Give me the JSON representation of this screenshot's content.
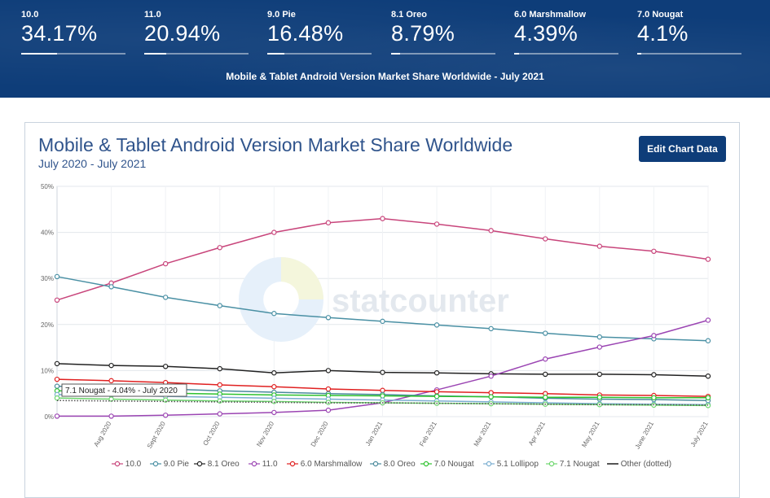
{
  "stats": [
    {
      "label": "10.0",
      "value": "34.17%",
      "share": 0.3417
    },
    {
      "label": "11.0",
      "value": "20.94%",
      "share": 0.2094
    },
    {
      "label": "9.0 Pie",
      "value": "16.48%",
      "share": 0.1648
    },
    {
      "label": "8.1 Oreo",
      "value": "8.79%",
      "share": 0.0879
    },
    {
      "label": "6.0 Marshmallow",
      "value": "4.39%",
      "share": 0.0439
    },
    {
      "label": "7.0 Nougat",
      "value": "4.1%",
      "share": 0.041
    }
  ],
  "banner_title": "Mobile & Tablet Android Version Market Share Worldwide - July 2021",
  "edit_button": "Edit Chart Data",
  "watermark": "statcounter",
  "tooltip": "7.1 Nougat - 4.04% - July 2020",
  "chart_data": {
    "type": "line",
    "title": "Mobile & Tablet Android Version Market Share Worldwide",
    "subtitle": "July 2020 - July 2021",
    "ylim": [
      0,
      50
    ],
    "y_ticks": [
      "0%",
      "10%",
      "20%",
      "30%",
      "40%",
      "50%"
    ],
    "categories": [
      "July 2020",
      "Aug 2020",
      "Sept 2020",
      "Oct 2020",
      "Nov 2020",
      "Dec 2020",
      "Jan 2021",
      "Feb 2021",
      "Mar 2021",
      "Apr 2021",
      "May 2021",
      "June 2021",
      "July 2021"
    ],
    "x_labels": [
      "Aug 2020",
      "Sept 2020",
      "Oct 2020",
      "Nov 2020",
      "Dec 2020",
      "Jan 2021",
      "Feb 2021",
      "Mar 2021",
      "Apr 2021",
      "May 2021",
      "June 2021",
      "July 2021"
    ],
    "grid": true,
    "legend_position": "bottom",
    "series": [
      {
        "name": "10.0",
        "color": "#c8457b",
        "values": [
          25.3,
          29.0,
          33.2,
          36.7,
          40.0,
          42.1,
          43.0,
          41.8,
          40.4,
          38.6,
          37.0,
          35.9,
          34.17
        ]
      },
      {
        "name": "9.0 Pie",
        "color": "#4a90a4",
        "values": [
          30.4,
          28.2,
          25.9,
          24.1,
          22.4,
          21.5,
          20.7,
          19.9,
          19.1,
          18.1,
          17.3,
          16.9,
          16.48
        ]
      },
      {
        "name": "8.1 Oreo",
        "color": "#222222",
        "values": [
          11.5,
          11.1,
          10.9,
          10.4,
          9.5,
          10.0,
          9.6,
          9.5,
          9.3,
          9.2,
          9.2,
          9.1,
          8.79
        ]
      },
      {
        "name": "11.0",
        "color": "#9b45b3",
        "values": [
          0.1,
          0.1,
          0.3,
          0.6,
          0.9,
          1.4,
          3.0,
          5.8,
          8.8,
          12.5,
          15.1,
          17.6,
          20.94
        ]
      },
      {
        "name": "6.0 Marshmallow",
        "color": "#e02020",
        "values": [
          8.1,
          7.8,
          7.4,
          6.9,
          6.5,
          6.0,
          5.7,
          5.4,
          5.2,
          5.0,
          4.7,
          4.6,
          4.39
        ]
      },
      {
        "name": "8.0 Oreo",
        "color": "#4a8a9c",
        "values": [
          6.6,
          6.3,
          6.0,
          5.6,
          5.3,
          5.0,
          4.8,
          4.5,
          4.3,
          4.0,
          3.8,
          3.7,
          3.5
        ]
      },
      {
        "name": "7.0 Nougat",
        "color": "#2ec22e",
        "values": [
          5.6,
          5.4,
          5.1,
          4.9,
          4.7,
          4.6,
          4.5,
          4.4,
          4.3,
          4.2,
          4.2,
          4.1,
          4.1
        ]
      },
      {
        "name": "5.1 Lollipop",
        "color": "#7aaed0",
        "values": [
          4.8,
          4.6,
          4.4,
          4.2,
          4.0,
          3.8,
          3.6,
          3.4,
          3.2,
          3.0,
          2.8,
          2.7,
          2.6
        ]
      },
      {
        "name": "7.1 Nougat",
        "color": "#6dd66d",
        "values": [
          4.04,
          3.8,
          3.6,
          3.4,
          3.3,
          3.1,
          3.0,
          2.9,
          2.8,
          2.7,
          2.6,
          2.5,
          2.4
        ]
      },
      {
        "name": "Other (dotted)",
        "color": "#555555",
        "values": [
          3.5,
          3.4,
          3.3,
          3.2,
          3.1,
          3.0,
          3.0,
          2.9,
          2.8,
          2.7,
          2.6,
          2.6,
          2.5
        ]
      }
    ]
  }
}
